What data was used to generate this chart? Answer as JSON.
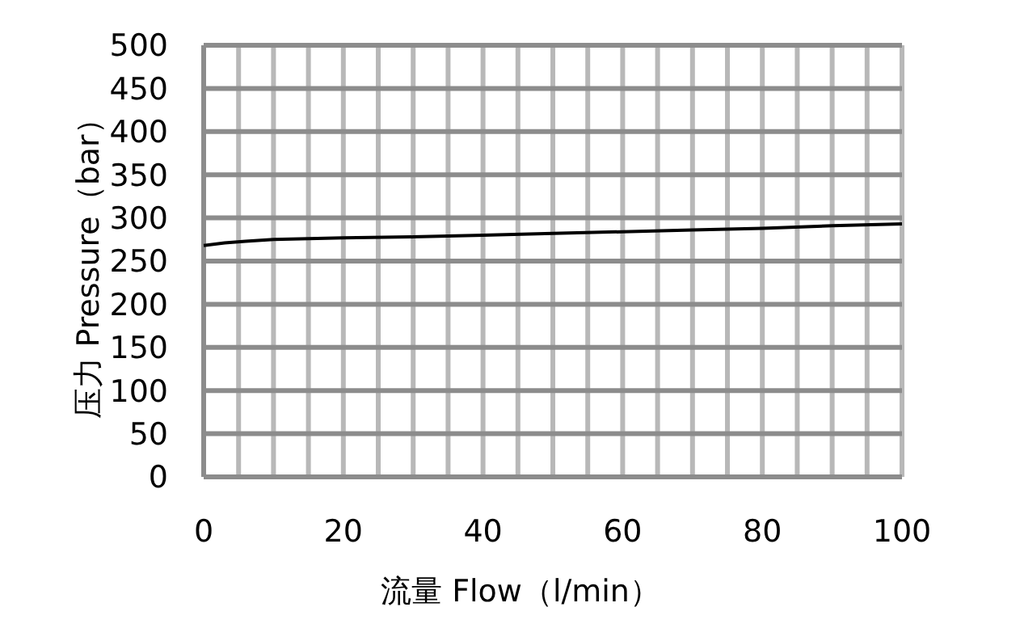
{
  "chart_data": {
    "type": "line",
    "xlabel": "流量 Flow（l/min）",
    "ylabel": "压力 Pressure（bar）",
    "x": [
      0,
      3,
      6,
      10,
      20,
      30,
      40,
      50,
      60,
      70,
      80,
      90,
      100
    ],
    "series": [
      {
        "color": "#000000",
        "values": [
          268,
          271,
          273,
          275,
          277,
          278,
          280,
          282,
          284,
          286,
          288,
          291,
          293
        ]
      }
    ],
    "xlim": [
      0,
      100
    ],
    "ylim": [
      0,
      500
    ],
    "xticks": [
      0,
      {
        "value": 5,
        "label": null
      },
      {
        "value": 10,
        "label": null
      },
      {
        "value": 15,
        "label": null
      },
      20,
      {
        "value": 25,
        "label": null
      },
      {
        "value": 30,
        "label": null
      },
      {
        "value": 35,
        "label": null
      },
      40,
      {
        "value": 45,
        "label": null
      },
      {
        "value": 50,
        "label": null
      },
      {
        "value": 55,
        "label": null
      },
      60,
      {
        "value": 65,
        "label": null
      },
      {
        "value": 70,
        "label": null
      },
      {
        "value": 75,
        "label": null
      },
      80,
      {
        "value": 85,
        "label": null
      },
      {
        "value": 90,
        "label": null
      },
      {
        "value": 95,
        "label": null
      },
      100
    ],
    "yticks": [
      0,
      50,
      100,
      150,
      200,
      250,
      300,
      350,
      400,
      450,
      500
    ],
    "grid": true,
    "marker": "none",
    "line_style": "solid"
  }
}
